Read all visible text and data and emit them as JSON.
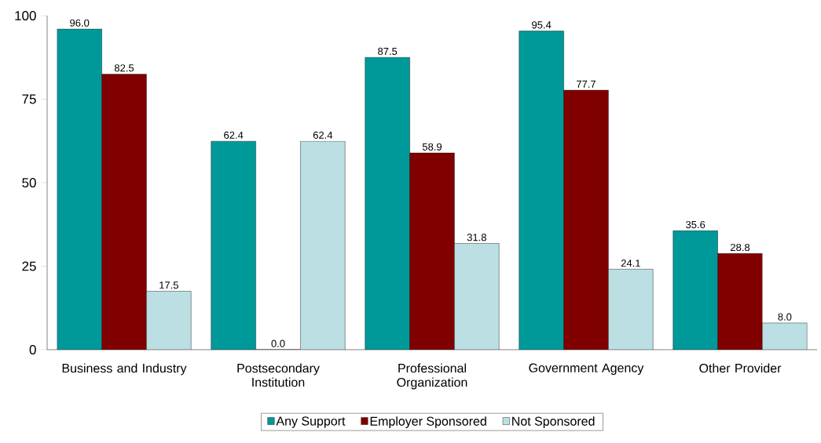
{
  "chart_data": {
    "type": "bar",
    "categories": [
      "Business and Industry",
      "Postsecondary Institution",
      "Professional Organization",
      "Government Agency",
      "Other Provider"
    ],
    "series": [
      {
        "name": "Any Support",
        "color": "#009999",
        "values": [
          96.0,
          62.4,
          87.5,
          95.4,
          35.6
        ],
        "value_labels": [
          "96.0",
          "62.4",
          "87.5",
          "95.4",
          "35.6"
        ]
      },
      {
        "name": "Employer Sponsored",
        "color": "#800000",
        "values": [
          82.5,
          0.0,
          58.9,
          77.7,
          28.8
        ],
        "value_labels": [
          "82.5",
          "0.0",
          "58.9",
          "77.7",
          "28.8"
        ]
      },
      {
        "name": "Not Sponsored",
        "color": "#bbdfe2",
        "values": [
          17.5,
          62.4,
          31.8,
          24.1,
          8.0
        ],
        "value_labels": [
          "17.5",
          "62.4",
          "31.8",
          "24.1",
          "8.0"
        ]
      }
    ],
    "ylim": [
      0,
      100
    ],
    "yticks": [
      0,
      25,
      50,
      75,
      100
    ],
    "legend": "bottom",
    "grid": false
  }
}
